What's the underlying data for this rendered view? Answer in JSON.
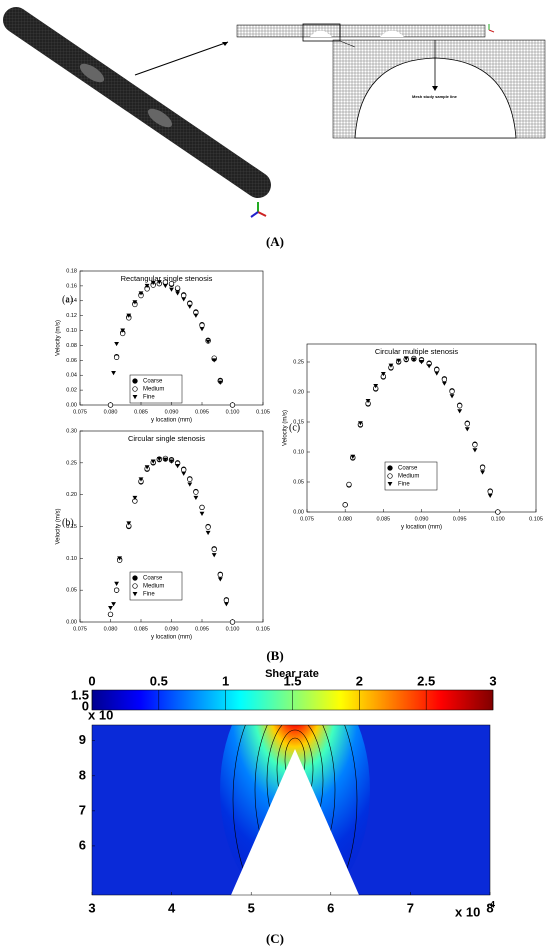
{
  "panel_labels": [
    "(A)",
    "(B)",
    "(C)"
  ],
  "sub_labels": [
    "(a)",
    "(b)",
    "(c)"
  ],
  "mesh_label": "Mesh study sample line",
  "chart_data": [
    {
      "type": "scatter",
      "title": "Rectangular single stenosis",
      "x_label": "y location (mm)",
      "y_label": "Velocity (m/s)",
      "xlim": [
        0.075,
        0.105
      ],
      "xticks": [
        {
          "value": 0.075,
          "label": "0.075"
        },
        {
          "value": 0.08,
          "label": "0.080"
        },
        {
          "value": 0.085,
          "label": "0.085"
        },
        {
          "value": 0.09,
          "label": "0.090"
        },
        {
          "value": 0.095,
          "label": "0.095"
        },
        {
          "value": 0.1,
          "label": "0.100"
        },
        {
          "value": 0.105,
          "label": "0.105"
        }
      ],
      "ylim": [
        0,
        0.18
      ],
      "yticks": [
        {
          "value": 0,
          "label": "0.00"
        },
        {
          "value": 0.02,
          "label": "0.02"
        },
        {
          "value": 0.04,
          "label": "0.04"
        },
        {
          "value": 0.06,
          "label": "0.06"
        },
        {
          "value": 0.08,
          "label": "0.08"
        },
        {
          "value": 0.1,
          "label": "0.10"
        },
        {
          "value": 0.12,
          "label": "0.12"
        },
        {
          "value": 0.14,
          "label": "0.14"
        },
        {
          "value": 0.16,
          "label": "0.16"
        },
        {
          "value": 0.18,
          "label": "0.18"
        }
      ],
      "x": [
        0.08,
        0.0805,
        0.081,
        0.082,
        0.083,
        0.084,
        0.085,
        0.086,
        0.087,
        0.088,
        0.089,
        0.09,
        0.091,
        0.092,
        0.093,
        0.094,
        0.095,
        0.096,
        0.097,
        0.098,
        0.099,
        0.1
      ],
      "series": [
        {
          "name": "Coarse",
          "marker": "circle",
          "color": "#000000",
          "values": [
            0,
            null,
            0.065,
            0.097,
            0.118,
            0.136,
            0.148,
            0.157,
            0.162,
            0.163,
            0.164,
            0.162,
            0.156,
            0.148,
            0.137,
            0.125,
            0.108,
            0.087,
            0.062,
            0.033,
            null,
            0
          ]
        },
        {
          "name": "Medium",
          "marker": "open-circle",
          "color": "#000000",
          "values": [
            0,
            null,
            0.064,
            0.096,
            0.117,
            0.135,
            0.147,
            0.156,
            0.161,
            0.163,
            0.165,
            0.163,
            0.157,
            0.147,
            0.136,
            0.124,
            0.107,
            0.086,
            0.063,
            0.032,
            null,
            0
          ]
        },
        {
          "name": "Fine",
          "marker": "triangle-down",
          "color": "#000000",
          "values": [
            null,
            0.043,
            0.082,
            0.1,
            0.12,
            0.138,
            0.15,
            0.16,
            0.164,
            0.165,
            0.16,
            0.155,
            0.15,
            0.142,
            0.132,
            0.12,
            0.102,
            0.085,
            0.06,
            0.03,
            null,
            null
          ]
        }
      ]
    },
    {
      "type": "scatter",
      "title": "Circular single stenosis",
      "x_label": "y location (mm)",
      "y_label": "Velocity (m/s)",
      "xlim": [
        0.075,
        0.105
      ],
      "xticks": [
        {
          "value": 0.075,
          "label": "0.075"
        },
        {
          "value": 0.08,
          "label": "0.080"
        },
        {
          "value": 0.085,
          "label": "0.085"
        },
        {
          "value": 0.09,
          "label": "0.090"
        },
        {
          "value": 0.095,
          "label": "0.095"
        },
        {
          "value": 0.1,
          "label": "0.100"
        },
        {
          "value": 0.105,
          "label": "0.105"
        }
      ],
      "ylim": [
        0,
        0.3
      ],
      "yticks": [
        {
          "value": 0,
          "label": "0.00"
        },
        {
          "value": 0.05,
          "label": "0.05"
        },
        {
          "value": 0.1,
          "label": "0.10"
        },
        {
          "value": 0.15,
          "label": "0.15"
        },
        {
          "value": 0.2,
          "label": "0.20"
        },
        {
          "value": 0.25,
          "label": "0.25"
        },
        {
          "value": 0.3,
          "label": "0.30"
        }
      ],
      "x": [
        0.08,
        0.0805,
        0.081,
        0.0815,
        0.083,
        0.084,
        0.085,
        0.086,
        0.087,
        0.088,
        0.089,
        0.09,
        0.091,
        0.092,
        0.093,
        0.094,
        0.095,
        0.096,
        0.097,
        0.098,
        0.099,
        0.1
      ],
      "series": [
        {
          "name": "Coarse",
          "marker": "circle",
          "color": "#000000",
          "values": [
            0.012,
            null,
            0.05,
            0.098,
            0.15,
            0.19,
            0.22,
            0.24,
            0.25,
            0.255,
            0.256,
            0.255,
            0.25,
            0.24,
            0.225,
            0.205,
            0.18,
            0.15,
            0.115,
            0.075,
            0.035,
            0
          ]
        },
        {
          "name": "Medium",
          "marker": "open-circle",
          "color": "#000000",
          "values": [
            0.012,
            null,
            0.05,
            0.097,
            0.151,
            0.19,
            0.221,
            0.241,
            0.251,
            0.256,
            0.257,
            0.254,
            0.249,
            0.239,
            0.224,
            0.204,
            0.18,
            0.149,
            0.114,
            0.074,
            0.034,
            0
          ]
        },
        {
          "name": "Fine",
          "marker": "triangle-down",
          "color": "#000000",
          "values": [
            0.022,
            0.028,
            0.06,
            0.1,
            0.155,
            0.195,
            0.224,
            0.243,
            0.252,
            0.256,
            0.255,
            0.252,
            0.245,
            0.233,
            0.216,
            0.195,
            0.17,
            0.14,
            0.105,
            0.067,
            0.028,
            null
          ]
        }
      ]
    },
    {
      "type": "scatter",
      "title": "Circular multiple stenosis",
      "x_label": "y location (mm)",
      "y_label": "Velocity (m/s)",
      "xlim": [
        0.075,
        0.105
      ],
      "xticks": [
        {
          "value": 0.075,
          "label": "0.075"
        },
        {
          "value": 0.08,
          "label": "0.080"
        },
        {
          "value": 0.085,
          "label": "0.085"
        },
        {
          "value": 0.09,
          "label": "0.090"
        },
        {
          "value": 0.095,
          "label": "0.095"
        },
        {
          "value": 0.1,
          "label": "0.100"
        },
        {
          "value": 0.105,
          "label": "0.105"
        }
      ],
      "ylim": [
        0,
        0.28
      ],
      "yticks": [
        {
          "value": 0,
          "label": "0.00"
        },
        {
          "value": 0.05,
          "label": "0.05"
        },
        {
          "value": 0.1,
          "label": "0.10"
        },
        {
          "value": 0.15,
          "label": "0.15"
        },
        {
          "value": 0.2,
          "label": "0.20"
        },
        {
          "value": 0.25,
          "label": "0.25"
        }
      ],
      "x": [
        0.08,
        0.0805,
        0.081,
        0.082,
        0.083,
        0.084,
        0.085,
        0.086,
        0.087,
        0.088,
        0.089,
        0.09,
        0.091,
        0.092,
        0.093,
        0.094,
        0.095,
        0.096,
        0.097,
        0.098,
        0.099,
        0.1
      ],
      "series": [
        {
          "name": "Coarse",
          "marker": "circle",
          "color": "#000000",
          "values": [
            0.012,
            0.045,
            0.09,
            0.145,
            0.18,
            0.205,
            0.225,
            0.24,
            0.25,
            0.254,
            0.255,
            0.254,
            0.248,
            0.238,
            0.222,
            0.202,
            0.178,
            0.148,
            0.113,
            0.075,
            0.035,
            0
          ]
        },
        {
          "name": "Medium",
          "marker": "open-circle",
          "color": "#000000",
          "values": [
            0.012,
            0.046,
            0.091,
            0.146,
            0.181,
            0.206,
            0.226,
            0.241,
            0.251,
            0.255,
            0.256,
            0.253,
            0.247,
            0.237,
            0.221,
            0.201,
            0.177,
            0.147,
            0.112,
            0.074,
            0.034,
            0
          ]
        },
        {
          "name": "Fine",
          "marker": "triangle-down",
          "color": "#000000",
          "values": [
            null,
            null,
            0.092,
            0.148,
            0.185,
            0.21,
            0.23,
            0.244,
            0.252,
            0.256,
            0.254,
            0.25,
            0.243,
            0.231,
            0.214,
            0.193,
            0.168,
            0.138,
            0.103,
            0.066,
            0.027,
            null
          ]
        }
      ]
    },
    {
      "type": "contour",
      "title": "Shear rate",
      "colorbar_lim": [
        0,
        3
      ],
      "colorbar_ticks": [
        0,
        0.5,
        1,
        1.5,
        2,
        2.5,
        3
      ],
      "xlim": [
        3,
        8
      ],
      "xticks": [
        3,
        4,
        5,
        6,
        7,
        8
      ],
      "ylim": [
        4.6,
        9.45
      ],
      "yticks": [
        6,
        7,
        8,
        9
      ],
      "x_offset_label": "x 10",
      "x_offset_exponent": "-4",
      "y_offset_label": "x 10",
      "y_offset_overlap_labels": [
        "1.5",
        "0"
      ]
    }
  ]
}
